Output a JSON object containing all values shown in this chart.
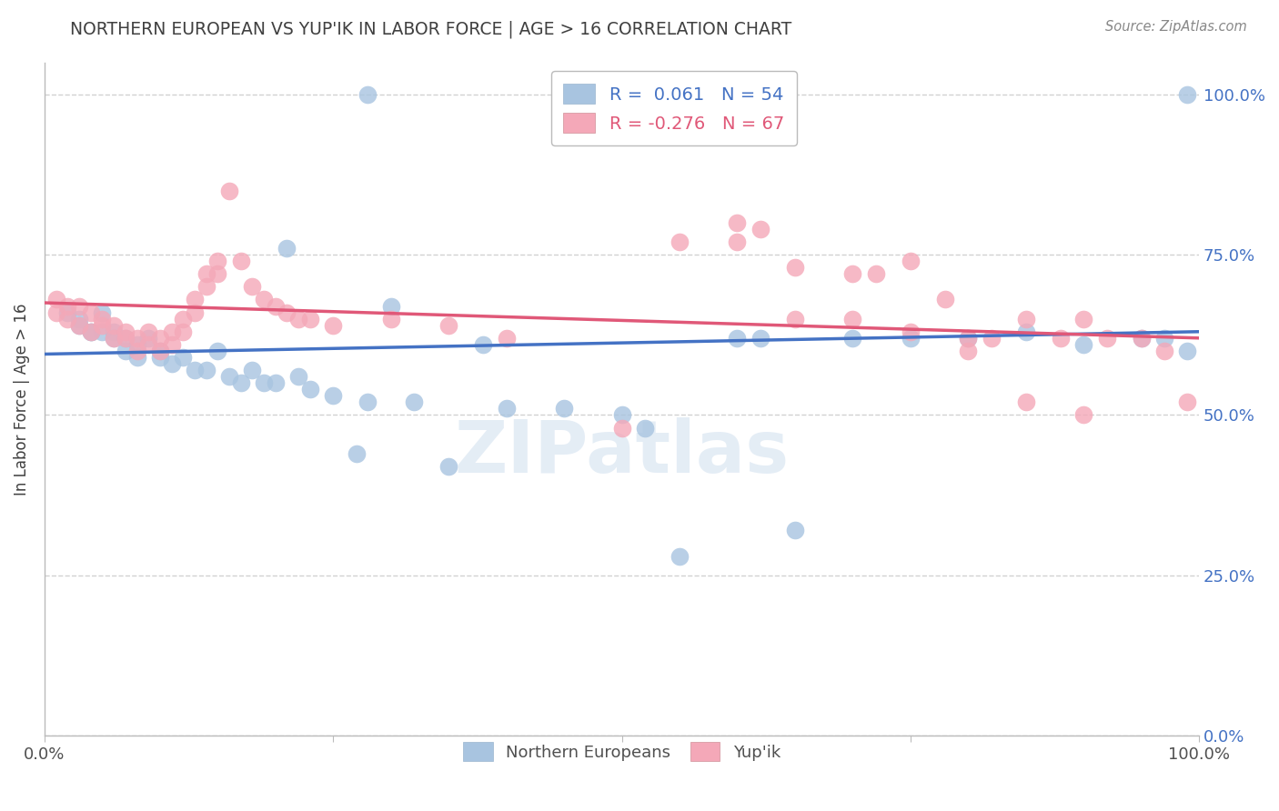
{
  "title": "NORTHERN EUROPEAN VS YUP'IK IN LABOR FORCE | AGE > 16 CORRELATION CHART",
  "source": "Source: ZipAtlas.com",
  "ylabel": "In Labor Force | Age > 16",
  "watermark": "ZIPatlas",
  "blue_R": 0.061,
  "blue_N": 54,
  "pink_R": -0.276,
  "pink_N": 67,
  "blue_color": "#a8c4e0",
  "pink_color": "#f4a8b8",
  "blue_line_color": "#4472c4",
  "pink_line_color": "#e05878",
  "title_color": "#404040",
  "source_color": "#888888",
  "ylabel_color": "#404040",
  "right_ytick_color": "#4472c4",
  "background_color": "#ffffff",
  "grid_color": "#cccccc",
  "legend_label_blue": "Northern Europeans",
  "legend_label_pink": "Yup'ik",
  "blue_x": [
    0.28,
    0.02,
    0.03,
    0.03,
    0.04,
    0.04,
    0.05,
    0.05,
    0.06,
    0.06,
    0.07,
    0.07,
    0.08,
    0.08,
    0.09,
    0.1,
    0.1,
    0.11,
    0.12,
    0.13,
    0.14,
    0.15,
    0.16,
    0.17,
    0.18,
    0.19,
    0.2,
    0.21,
    0.22,
    0.23,
    0.25,
    0.27,
    0.28,
    0.3,
    0.32,
    0.35,
    0.38,
    0.4,
    0.45,
    0.5,
    0.52,
    0.55,
    0.6,
    0.62,
    0.65,
    0.7,
    0.75,
    0.8,
    0.85,
    0.9,
    0.95,
    0.97,
    0.99,
    0.99
  ],
  "blue_y": [
    1.0,
    0.66,
    0.65,
    0.64,
    0.63,
    0.63,
    0.66,
    0.63,
    0.63,
    0.62,
    0.62,
    0.6,
    0.61,
    0.59,
    0.62,
    0.6,
    0.59,
    0.58,
    0.59,
    0.57,
    0.57,
    0.6,
    0.56,
    0.55,
    0.57,
    0.55,
    0.55,
    0.76,
    0.56,
    0.54,
    0.53,
    0.44,
    0.52,
    0.67,
    0.52,
    0.42,
    0.61,
    0.51,
    0.51,
    0.5,
    0.48,
    0.28,
    0.62,
    0.62,
    0.32,
    0.62,
    0.62,
    0.62,
    0.63,
    0.61,
    0.62,
    0.62,
    1.0,
    0.6
  ],
  "pink_x": [
    0.01,
    0.01,
    0.02,
    0.02,
    0.03,
    0.03,
    0.04,
    0.04,
    0.05,
    0.05,
    0.06,
    0.06,
    0.07,
    0.07,
    0.08,
    0.08,
    0.09,
    0.09,
    0.1,
    0.1,
    0.11,
    0.11,
    0.12,
    0.12,
    0.13,
    0.13,
    0.14,
    0.14,
    0.15,
    0.15,
    0.16,
    0.17,
    0.18,
    0.19,
    0.2,
    0.21,
    0.22,
    0.23,
    0.25,
    0.3,
    0.35,
    0.4,
    0.5,
    0.55,
    0.6,
    0.62,
    0.65,
    0.7,
    0.72,
    0.75,
    0.78,
    0.8,
    0.82,
    0.85,
    0.88,
    0.9,
    0.92,
    0.95,
    0.97,
    0.99,
    0.6,
    0.65,
    0.7,
    0.75,
    0.8,
    0.85,
    0.9
  ],
  "pink_y": [
    0.68,
    0.66,
    0.67,
    0.65,
    0.67,
    0.64,
    0.66,
    0.63,
    0.65,
    0.64,
    0.64,
    0.62,
    0.63,
    0.62,
    0.62,
    0.6,
    0.63,
    0.61,
    0.62,
    0.6,
    0.63,
    0.61,
    0.65,
    0.63,
    0.68,
    0.66,
    0.72,
    0.7,
    0.74,
    0.72,
    0.85,
    0.74,
    0.7,
    0.68,
    0.67,
    0.66,
    0.65,
    0.65,
    0.64,
    0.65,
    0.64,
    0.62,
    0.48,
    0.77,
    0.8,
    0.79,
    0.73,
    0.72,
    0.72,
    0.74,
    0.68,
    0.62,
    0.62,
    0.65,
    0.62,
    0.65,
    0.62,
    0.62,
    0.6,
    0.52,
    0.77,
    0.65,
    0.65,
    0.63,
    0.6,
    0.52,
    0.5
  ],
  "blue_line_x0": 0.0,
  "blue_line_x1": 1.0,
  "blue_line_y0": 0.595,
  "blue_line_y1": 0.63,
  "pink_line_x0": 0.0,
  "pink_line_x1": 1.0,
  "pink_line_y0": 0.675,
  "pink_line_y1": 0.62,
  "xlim": [
    0.0,
    1.0
  ],
  "ylim": [
    0.0,
    1.05
  ],
  "yticks": [
    0.0,
    0.25,
    0.5,
    0.75,
    1.0
  ],
  "ytick_labels_right": [
    "0.0%",
    "25.0%",
    "50.0%",
    "75.0%",
    "100.0%"
  ],
  "xticks": [
    0.0,
    0.25,
    0.5,
    0.75,
    1.0
  ]
}
